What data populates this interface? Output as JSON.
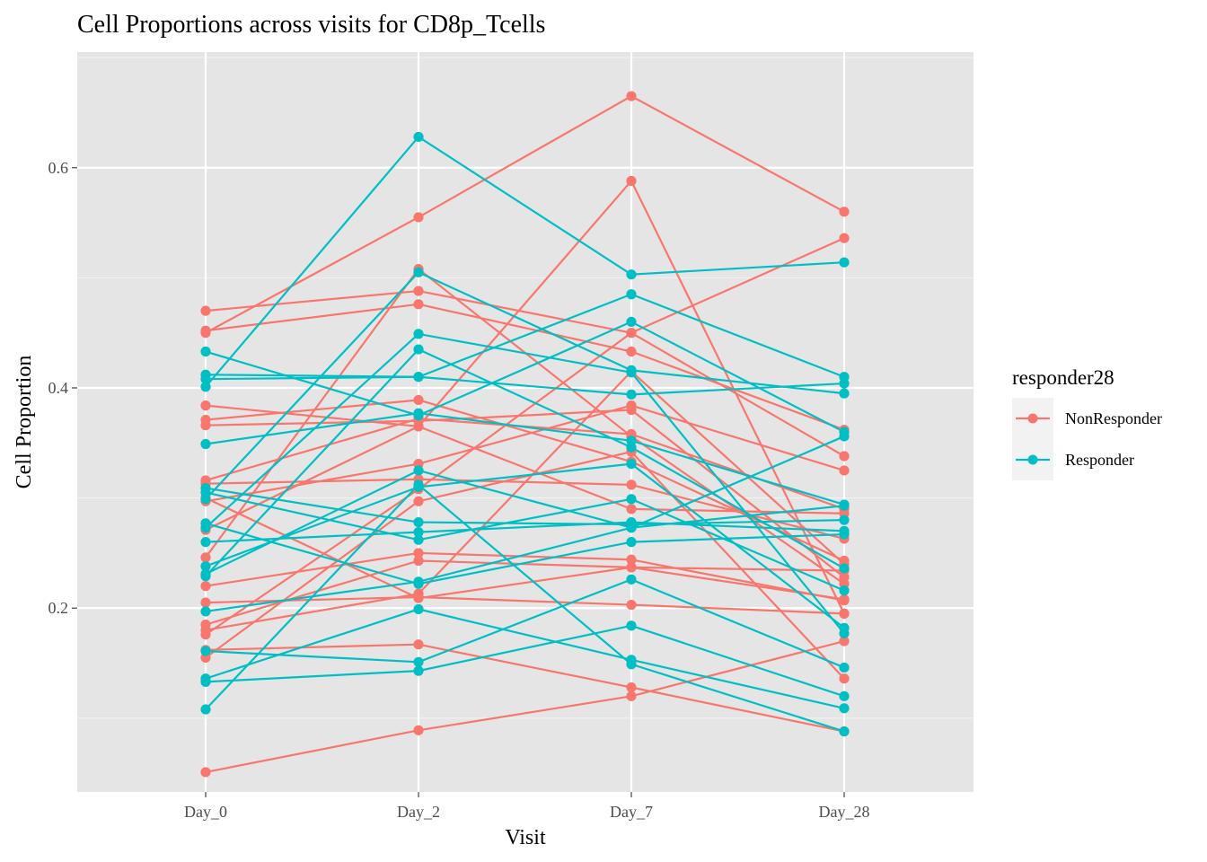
{
  "chart_data": {
    "type": "line",
    "title": "Cell Proportions across visits for CD8p_Tcells",
    "xlabel": "Visit",
    "ylabel": "Cell Proportion",
    "categories": [
      "Day_0",
      "Day_2",
      "Day_7",
      "Day_28"
    ],
    "ylim": [
      0.033,
      0.705
    ],
    "yticks": [
      0.2,
      0.4,
      0.6
    ],
    "ytick_labels": [
      "0.2",
      "0.4",
      "0.6"
    ],
    "grid": true,
    "panel_background": "#E5E5E5",
    "legend": {
      "title": "responder28",
      "position": "right",
      "entries": [
        {
          "label": "NonResponder",
          "color": "#F8766D"
        },
        {
          "label": "Responder",
          "color": "#00BFC4"
        }
      ]
    },
    "series": [
      {
        "group": "NonResponder",
        "values": [
          0.45,
          0.555,
          0.665,
          0.56
        ]
      },
      {
        "group": "NonResponder",
        "values": [
          0.47,
          0.488,
          0.45,
          0.338
        ]
      },
      {
        "group": "NonResponder",
        "values": [
          0.452,
          0.476,
          0.433,
          0.362
        ]
      },
      {
        "group": "NonResponder",
        "values": [
          0.384,
          0.365,
          0.588,
          0.195
        ]
      },
      {
        "group": "NonResponder",
        "values": [
          0.371,
          0.389,
          0.333,
          0.243
        ]
      },
      {
        "group": "NonResponder",
        "values": [
          0.366,
          0.37,
          0.38,
          0.228
        ]
      },
      {
        "group": "NonResponder",
        "values": [
          0.316,
          0.372,
          0.358,
          0.29
        ]
      },
      {
        "group": "NonResponder",
        "values": [
          0.313,
          0.317,
          0.312,
          0.263
        ]
      },
      {
        "group": "NonResponder",
        "values": [
          0.297,
          0.331,
          0.384,
          0.325
        ]
      },
      {
        "group": "NonResponder",
        "values": [
          0.271,
          0.365,
          0.29,
          0.286
        ]
      },
      {
        "group": "NonResponder",
        "values": [
          0.246,
          0.508,
          0.356,
          0.222
        ]
      },
      {
        "group": "NonResponder",
        "values": [
          0.22,
          0.25,
          0.244,
          0.207
        ]
      },
      {
        "group": "NonResponder",
        "values": [
          0.205,
          0.21,
          0.203,
          0.195
        ]
      },
      {
        "group": "NonResponder",
        "values": [
          0.185,
          0.243,
          0.237,
          0.234
        ]
      },
      {
        "group": "NonResponder",
        "values": [
          0.18,
          0.213,
          0.415,
          0.24
        ]
      },
      {
        "group": "NonResponder",
        "values": [
          0.176,
          0.308,
          0.45,
          0.536
        ]
      },
      {
        "group": "NonResponder",
        "values": [
          0.162,
          0.167,
          0.128,
          0.088
        ]
      },
      {
        "group": "NonResponder",
        "values": [
          0.155,
          0.297,
          0.342,
          0.136
        ]
      },
      {
        "group": "NonResponder",
        "values": [
          0.051,
          0.089,
          0.12,
          0.17
        ]
      },
      {
        "group": "NonResponder",
        "values": [
          0.3,
          0.209,
          0.237,
          0.208
        ]
      },
      {
        "group": "Responder",
        "values": [
          0.433,
          0.375,
          0.46,
          0.36
        ]
      },
      {
        "group": "Responder",
        "values": [
          0.412,
          0.41,
          0.394,
          0.404
        ]
      },
      {
        "group": "Responder",
        "values": [
          0.408,
          0.41,
          0.485,
          0.41
        ]
      },
      {
        "group": "Responder",
        "values": [
          0.401,
          0.628,
          0.503,
          0.514
        ]
      },
      {
        "group": "Responder",
        "values": [
          0.349,
          0.377,
          0.352,
          0.294
        ]
      },
      {
        "group": "Responder",
        "values": [
          0.309,
          0.278,
          0.276,
          0.28
        ]
      },
      {
        "group": "Responder",
        "values": [
          0.305,
          0.262,
          0.299,
          0.216
        ]
      },
      {
        "group": "Responder",
        "values": [
          0.299,
          0.505,
          0.416,
          0.395
        ]
      },
      {
        "group": "Responder",
        "values": [
          0.277,
          0.222,
          0.26,
          0.267
        ]
      },
      {
        "group": "Responder",
        "values": [
          0.273,
          0.449,
          0.414,
          0.177
        ]
      },
      {
        "group": "Responder",
        "values": [
          0.26,
          0.269,
          0.278,
          0.27
        ]
      },
      {
        "group": "Responder",
        "values": [
          0.238,
          0.31,
          0.331,
          0.182
        ]
      },
      {
        "group": "Responder",
        "values": [
          0.231,
          0.325,
          0.273,
          0.356
        ]
      },
      {
        "group": "Responder",
        "values": [
          0.229,
          0.435,
          0.346,
          0.236
        ]
      },
      {
        "group": "Responder",
        "values": [
          0.197,
          0.224,
          0.273,
          0.293
        ]
      },
      {
        "group": "Responder",
        "values": [
          0.161,
          0.151,
          0.226,
          0.146
        ]
      },
      {
        "group": "Responder",
        "values": [
          0.136,
          0.199,
          0.153,
          0.109
        ]
      },
      {
        "group": "Responder",
        "values": [
          0.133,
          0.143,
          0.184,
          0.12
        ]
      },
      {
        "group": "Responder",
        "values": [
          0.108,
          0.312,
          0.149,
          0.088
        ]
      }
    ]
  }
}
